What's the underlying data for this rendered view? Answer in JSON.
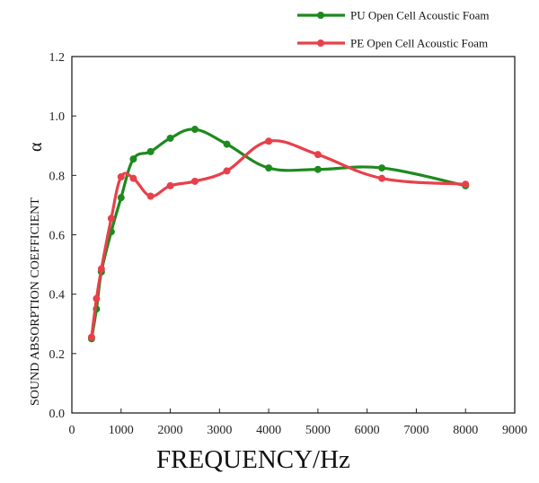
{
  "chart_data": {
    "type": "line",
    "title": "",
    "xlabel": "FREQUENCY/Hz",
    "ylabel": "SOUND ABSORPTION COEFFICIENT",
    "ylabel_symbol": "α",
    "xlim": [
      0,
      9000
    ],
    "ylim": [
      0.0,
      1.2
    ],
    "x_ticks": [
      0,
      1000,
      2000,
      3000,
      4000,
      5000,
      6000,
      7000,
      8000,
      9000
    ],
    "x_tick_labels": [
      "0",
      "1000",
      "2000",
      "3000",
      "4000",
      "5000",
      "6000",
      "7000",
      "8000",
      "9000"
    ],
    "y_ticks": [
      0.0,
      0.2,
      0.4,
      0.6,
      0.8,
      1.0,
      1.2
    ],
    "y_tick_labels": [
      "0.0",
      "0.2",
      "0.4",
      "0.6",
      "0.8",
      "1.0",
      "1.2"
    ],
    "grid": false,
    "legend_position": "top-right, outside plot",
    "series": [
      {
        "name": "PU Open Cell Acoustic Foam",
        "color": "#1e8a1e",
        "x": [
          400,
          500,
          600,
          800,
          1000,
          1250,
          1600,
          2000,
          2500,
          3150,
          4000,
          5000,
          6300,
          8000
        ],
        "y": [
          0.25,
          0.35,
          0.475,
          0.61,
          0.725,
          0.855,
          0.88,
          0.925,
          0.955,
          0.905,
          0.825,
          0.82,
          0.825,
          0.765
        ]
      },
      {
        "name": "PE Open Cell Acoustic Foam",
        "color": "#e8404a",
        "x": [
          400,
          500,
          600,
          800,
          1000,
          1250,
          1600,
          2000,
          2500,
          3150,
          4000,
          5000,
          6300,
          8000
        ],
        "y": [
          0.255,
          0.385,
          0.485,
          0.655,
          0.795,
          0.79,
          0.73,
          0.765,
          0.78,
          0.815,
          0.915,
          0.87,
          0.79,
          0.77
        ]
      }
    ]
  }
}
